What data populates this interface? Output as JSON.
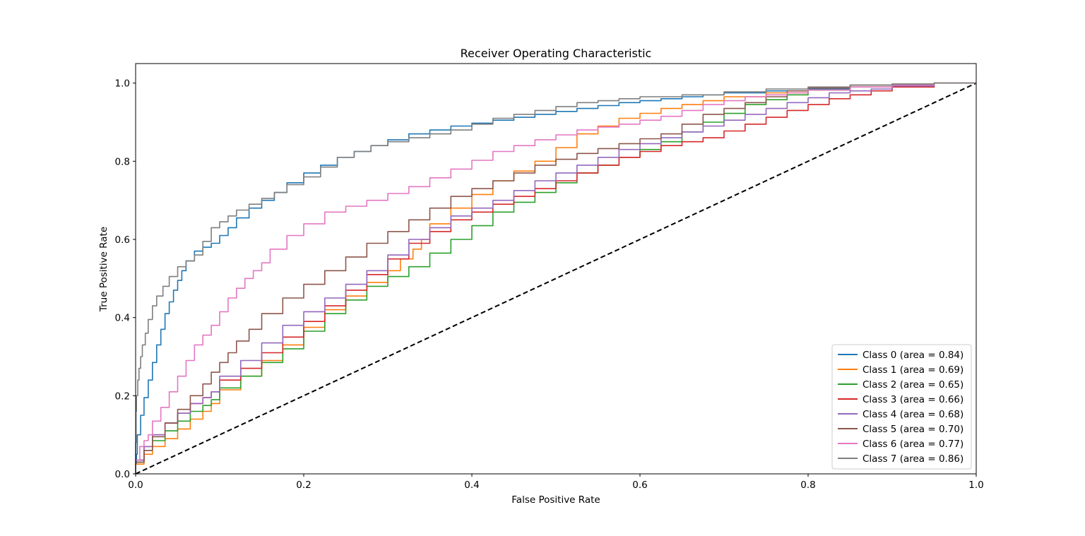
{
  "chart_data": {
    "type": "line",
    "title": "Receiver Operating Characteristic",
    "xlabel": "False Positive Rate",
    "ylabel": "True Positive Rate",
    "xlim": [
      0.0,
      1.0
    ],
    "ylim": [
      0.0,
      1.05
    ],
    "xticks": [
      0.0,
      0.2,
      0.4,
      0.6,
      0.8,
      1.0
    ],
    "xtick_labels": [
      "0.0",
      "0.2",
      "0.4",
      "0.6",
      "0.8",
      "1.0"
    ],
    "yticks": [
      0.0,
      0.2,
      0.4,
      0.6,
      0.8,
      1.0
    ],
    "ytick_labels": [
      "0.0",
      "0.2",
      "0.4",
      "0.6",
      "0.8",
      "1.0"
    ],
    "grid": false,
    "legend_position": "lower-right",
    "diagonal": {
      "x": [
        0,
        1
      ],
      "y": [
        0,
        1
      ],
      "style": "dashed",
      "color": "#000000"
    },
    "series": [
      {
        "name": "Class 0 (area = 0.84)",
        "color": "#1f77b4",
        "x": [
          0,
          0.002,
          0.01,
          0.02,
          0.03,
          0.04,
          0.05,
          0.06,
          0.08,
          0.1,
          0.12,
          0.15,
          0.18,
          0.22,
          0.26,
          0.3,
          0.35,
          0.4,
          0.45,
          0.5,
          0.55,
          0.6,
          0.65,
          0.7,
          0.8,
          0.9,
          1.0
        ],
        "y": [
          0,
          0.05,
          0.15,
          0.24,
          0.33,
          0.41,
          0.47,
          0.52,
          0.57,
          0.59,
          0.63,
          0.68,
          0.72,
          0.77,
          0.81,
          0.84,
          0.87,
          0.89,
          0.905,
          0.92,
          0.935,
          0.95,
          0.96,
          0.97,
          0.98,
          0.99,
          1.0
        ]
      },
      {
        "name": "Class 1 (area = 0.69)",
        "color": "#ff7f0e",
        "x": [
          0,
          0.02,
          0.05,
          0.08,
          0.1,
          0.15,
          0.2,
          0.25,
          0.3,
          0.33,
          0.35,
          0.4,
          0.45,
          0.5,
          0.55,
          0.6,
          0.65,
          0.7,
          0.8,
          0.9,
          1.0
        ],
        "y": [
          0,
          0.05,
          0.09,
          0.14,
          0.18,
          0.25,
          0.33,
          0.42,
          0.49,
          0.55,
          0.6,
          0.68,
          0.75,
          0.8,
          0.87,
          0.91,
          0.935,
          0.955,
          0.975,
          0.99,
          1.0
        ]
      },
      {
        "name": "Class 2 (area = 0.65)",
        "color": "#2ca02c",
        "x": [
          0,
          0.02,
          0.05,
          0.08,
          0.1,
          0.15,
          0.2,
          0.25,
          0.3,
          0.35,
          0.4,
          0.45,
          0.5,
          0.55,
          0.6,
          0.65,
          0.7,
          0.75,
          0.8,
          0.9,
          1.0
        ],
        "y": [
          0,
          0.06,
          0.11,
          0.16,
          0.19,
          0.25,
          0.32,
          0.41,
          0.48,
          0.53,
          0.6,
          0.67,
          0.72,
          0.77,
          0.81,
          0.85,
          0.9,
          0.945,
          0.97,
          0.995,
          1.0
        ]
      },
      {
        "name": "Class 3 (area = 0.66)",
        "color": "#d62728",
        "x": [
          0,
          0.02,
          0.05,
          0.08,
          0.1,
          0.15,
          0.2,
          0.25,
          0.3,
          0.35,
          0.4,
          0.45,
          0.5,
          0.55,
          0.6,
          0.65,
          0.7,
          0.75,
          0.8,
          0.85,
          0.9,
          1.0
        ],
        "y": [
          0,
          0.07,
          0.13,
          0.18,
          0.21,
          0.27,
          0.35,
          0.43,
          0.51,
          0.59,
          0.65,
          0.69,
          0.73,
          0.77,
          0.81,
          0.84,
          0.86,
          0.895,
          0.93,
          0.96,
          0.98,
          1.0
        ]
      },
      {
        "name": "Class 4 (area = 0.68)",
        "color": "#9467bd",
        "x": [
          0,
          0.02,
          0.05,
          0.08,
          0.1,
          0.15,
          0.2,
          0.25,
          0.3,
          0.35,
          0.4,
          0.45,
          0.5,
          0.55,
          0.6,
          0.65,
          0.7,
          0.75,
          0.8,
          0.85,
          0.9,
          1.0
        ],
        "y": [
          0,
          0.07,
          0.13,
          0.18,
          0.21,
          0.29,
          0.38,
          0.45,
          0.52,
          0.6,
          0.66,
          0.7,
          0.75,
          0.79,
          0.83,
          0.86,
          0.89,
          0.92,
          0.95,
          0.975,
          0.985,
          1.0
        ]
      },
      {
        "name": "Class 5 (area = 0.70)",
        "color": "#8c564b",
        "x": [
          0,
          0.02,
          0.05,
          0.08,
          0.1,
          0.12,
          0.15,
          0.2,
          0.25,
          0.3,
          0.35,
          0.4,
          0.45,
          0.5,
          0.55,
          0.6,
          0.65,
          0.7,
          0.75,
          0.8,
          0.9,
          1.0
        ],
        "y": [
          0,
          0.06,
          0.13,
          0.2,
          0.26,
          0.31,
          0.37,
          0.45,
          0.52,
          0.59,
          0.65,
          0.71,
          0.75,
          0.79,
          0.82,
          0.845,
          0.87,
          0.92,
          0.95,
          0.98,
          0.995,
          1.0
        ]
      },
      {
        "name": "Class 6 (area = 0.77)",
        "color": "#e377c2",
        "x": [
          0,
          0.01,
          0.02,
          0.04,
          0.06,
          0.08,
          0.1,
          0.12,
          0.14,
          0.16,
          0.2,
          0.25,
          0.3,
          0.35,
          0.4,
          0.45,
          0.5,
          0.55,
          0.6,
          0.65,
          0.7,
          0.75,
          0.8,
          0.9,
          1.0
        ],
        "y": [
          0,
          0.07,
          0.1,
          0.17,
          0.25,
          0.33,
          0.38,
          0.45,
          0.5,
          0.54,
          0.61,
          0.67,
          0.7,
          0.735,
          0.78,
          0.825,
          0.855,
          0.88,
          0.895,
          0.915,
          0.945,
          0.965,
          0.975,
          0.99,
          1.0
        ]
      },
      {
        "name": "Class 7 (area = 0.86)",
        "color": "#7f7f7f",
        "x": [
          0,
          0.001,
          0.004,
          0.008,
          0.015,
          0.025,
          0.04,
          0.06,
          0.08,
          0.1,
          0.12,
          0.15,
          0.18,
          0.22,
          0.26,
          0.3,
          0.35,
          0.4,
          0.45,
          0.5,
          0.55,
          0.6,
          0.7,
          0.8,
          0.9,
          1.0
        ],
        "y": [
          0,
          0.16,
          0.24,
          0.3,
          0.36,
          0.43,
          0.48,
          0.53,
          0.56,
          0.63,
          0.66,
          0.69,
          0.72,
          0.76,
          0.81,
          0.84,
          0.86,
          0.88,
          0.91,
          0.93,
          0.95,
          0.96,
          0.97,
          0.985,
          0.995,
          1.0
        ]
      }
    ]
  }
}
